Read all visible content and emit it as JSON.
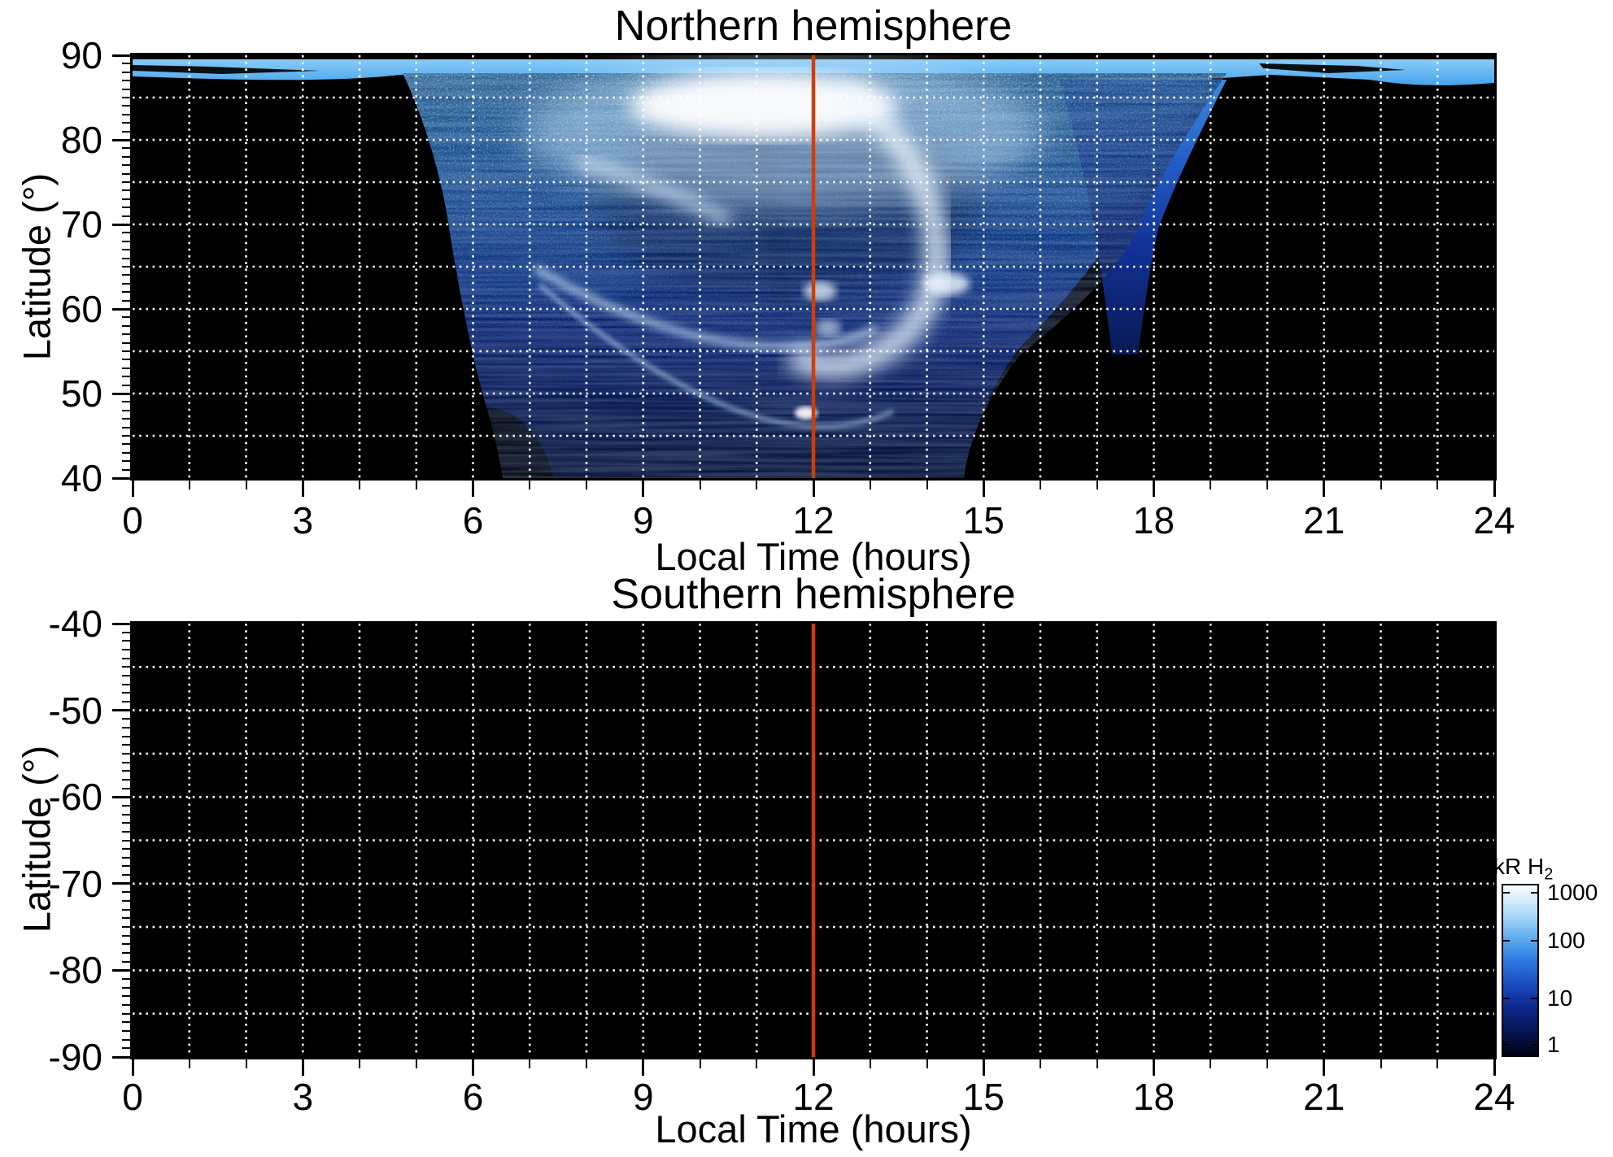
{
  "figure": {
    "north": {
      "title": "Northern hemisphere",
      "xlabel": "Local Time (hours)",
      "ylabel": "Latitude (°)",
      "x_tick_labels": [
        "0",
        "3",
        "6",
        "9",
        "12",
        "15",
        "18",
        "21",
        "24"
      ],
      "y_tick_labels": [
        "90",
        "80",
        "70",
        "60",
        "50",
        "40"
      ]
    },
    "south": {
      "title": "Southern hemisphere",
      "xlabel": "Local Time (hours)",
      "ylabel": "Latitude (°)",
      "x_tick_labels": [
        "0",
        "3",
        "6",
        "9",
        "12",
        "15",
        "18",
        "21",
        "24"
      ],
      "y_tick_labels": [
        "-40",
        "-50",
        "-60",
        "-70",
        "-80",
        "-90"
      ]
    },
    "colorbar": {
      "label": "kR H",
      "label_sub": "2",
      "tick_labels": [
        "1000",
        "100",
        "10",
        "1"
      ]
    },
    "annotations": {
      "noon_line_hour": 12,
      "noon_line_color": "#d23c05"
    },
    "grid_color": "#ffffff"
  },
  "chart_data": [
    {
      "type": "heatmap",
      "title": "Northern hemisphere",
      "xlabel": "Local Time (hours)",
      "ylabel": "Latitude (°)",
      "x_range": [
        0,
        24
      ],
      "x_tick_step": 3,
      "x_minor_tick_step": 1,
      "x_grid_step_hours": 1,
      "y_range": [
        40,
        90
      ],
      "y_tick_step": 10,
      "y_minor_tick_step": 1,
      "y_grid_step_deg": 5,
      "grid_style": "white dotted",
      "background": "black (no data)",
      "colorbar": {
        "label": "kR H2",
        "scale": "log",
        "range": [
          1,
          1000
        ],
        "ticks": [
          1,
          10,
          100,
          1000
        ],
        "colormap": "black -> dark navy -> blue -> light blue -> white"
      },
      "annotations": [
        {
          "type": "vline",
          "x": 12,
          "color": "#d23c05",
          "meaning": "noon meridian"
        }
      ],
      "features": [
        {
          "name": "circumpolar emission band",
          "local_time": [
            0,
            24
          ],
          "latitude": [
            86,
            90
          ],
          "intensity_kR": [
            50,
            300
          ]
        },
        {
          "name": "bright dayside polar patch",
          "local_time": [
            10,
            13
          ],
          "latitude": [
            83,
            88
          ],
          "intensity_kR": [
            500,
            1000
          ]
        },
        {
          "name": "main auroral oval arc (C-shaped, brightest 12-14 h)",
          "local_time": [
            7,
            14
          ],
          "latitude": [
            55,
            86
          ],
          "intensity_kR": [
            200,
            1000
          ]
        },
        {
          "name": "secondary equatorward arc",
          "local_time": [
            7,
            13.5
          ],
          "latitude": [
            45,
            65
          ],
          "intensity_kR": [
            50,
            200
          ]
        },
        {
          "name": "diffuse mottled emission",
          "local_time": [
            5,
            19
          ],
          "latitude": [
            40,
            90
          ],
          "intensity_kR": [
            1,
            100
          ]
        },
        {
          "name": "dusk-sector emission finger",
          "local_time": [
            17,
            18
          ],
          "latitude": [
            55,
            90
          ],
          "intensity_kR": [
            10,
            100
          ]
        },
        {
          "name": "bright spot",
          "local_time": [
            14.2,
            14.6
          ],
          "latitude": [
            62,
            64
          ],
          "intensity_kR": [
            300,
            600
          ]
        },
        {
          "name": "bright spot",
          "local_time": [
            11.7,
            12.1
          ],
          "latitude": [
            47,
            50
          ],
          "intensity_kR": [
            200,
            400
          ]
        },
        {
          "name": "no-data black regions",
          "description": "below ~86° for 0-5 h and 19-24 h; rounded notch below ~48° near 5.5-7 h; equatorward of oval for 14.5-24 h"
        }
      ]
    },
    {
      "type": "heatmap",
      "title": "Southern hemisphere",
      "xlabel": "Local Time (hours)",
      "ylabel": "Latitude (°)",
      "x_range": [
        0,
        24
      ],
      "x_tick_step": 3,
      "x_minor_tick_step": 1,
      "x_grid_step_hours": 1,
      "y_range": [
        -90,
        -40
      ],
      "y_tick_step": 10,
      "y_minor_tick_step": 1,
      "y_grid_step_deg": 5,
      "grid_style": "white dotted",
      "annotations": [
        {
          "type": "vline",
          "x": 12,
          "color": "#d23c05",
          "meaning": "noon meridian"
        }
      ],
      "features": [],
      "note": "no emission above threshold - entire panel black"
    }
  ]
}
